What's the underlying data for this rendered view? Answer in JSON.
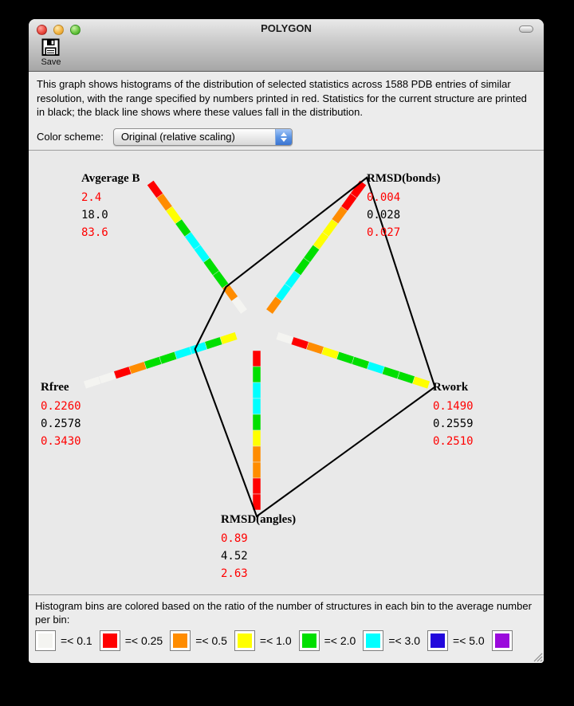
{
  "window": {
    "title": "POLYGON"
  },
  "toolbar": {
    "save_label": "Save"
  },
  "description": {
    "text": "This graph shows histograms of the distribution of selected statistics across 1588 PDB entries of similar resolution, with the range specified by numbers printed in red.  Statistics for the current structure are printed in black; the black line shows where these values fall in the distribution."
  },
  "controls": {
    "color_scheme_label": "Color scheme:",
    "color_scheme_value": "Original (relative scaling)"
  },
  "chart_data": {
    "type": "radar",
    "pdb_entries_count": 1588,
    "line_color": "#000000",
    "bin_colors": {
      "white": "#F4F4F1",
      "red": "#FF0000",
      "orange": "#FF8C00",
      "yellow": "#FFFF00",
      "green": "#00DF00",
      "cyan": "#00FFFF",
      "blue": "#2208DC",
      "purple": "#9A0ADC"
    },
    "axes": [
      {
        "key": "avg_b",
        "label": "Avgerage B",
        "range_min": "2.4",
        "current": "18.0",
        "range_max": "83.6",
        "bins_inner_to_outer": [
          "white",
          "orange",
          "green",
          "green",
          "cyan",
          "cyan",
          "green",
          "yellow",
          "orange",
          "red"
        ]
      },
      {
        "key": "rmsd_bonds",
        "label": "RMSD(bonds)",
        "range_min": "0.004",
        "current": "0.028",
        "range_max": "0.027",
        "bins_inner_to_outer": [
          "orange",
          "cyan",
          "cyan",
          "green",
          "green",
          "yellow",
          "yellow",
          "orange",
          "red",
          "red"
        ]
      },
      {
        "key": "rwork",
        "label": "Rwork",
        "range_min": "0.1490",
        "current": "0.2559",
        "range_max": "0.2510",
        "bins_inner_to_outer": [
          "white",
          "red",
          "orange",
          "yellow",
          "green",
          "green",
          "cyan",
          "green",
          "green",
          "yellow"
        ]
      },
      {
        "key": "rmsd_angles",
        "label": "RMSD(angles)",
        "range_min": "0.89",
        "current": "4.52",
        "range_max": "2.63",
        "bins_inner_to_outer": [
          "red",
          "green",
          "cyan",
          "cyan",
          "green",
          "yellow",
          "orange",
          "orange",
          "red",
          "red"
        ]
      },
      {
        "key": "rfree",
        "label": "Rfree",
        "range_min": "0.2260",
        "current": "0.2578",
        "range_max": "0.3430",
        "bins_inner_to_outer": [
          "yellow",
          "green",
          "cyan",
          "cyan",
          "green",
          "green",
          "orange",
          "red",
          "white",
          "white"
        ]
      }
    ]
  },
  "footer": {
    "text": "Histogram bins are colored based on the ratio of the number of structures in each bin to the average number per bin:",
    "legend": [
      {
        "color": "white",
        "label": "=< 0.1"
      },
      {
        "color": "red",
        "label": "=< 0.25"
      },
      {
        "color": "orange",
        "label": "=< 0.5"
      },
      {
        "color": "yellow",
        "label": "=< 1.0"
      },
      {
        "color": "green",
        "label": "=< 2.0"
      },
      {
        "color": "cyan",
        "label": "=< 3.0"
      },
      {
        "color": "blue",
        "label": "=< 5.0"
      },
      {
        "color": "purple",
        "label": ""
      }
    ]
  }
}
